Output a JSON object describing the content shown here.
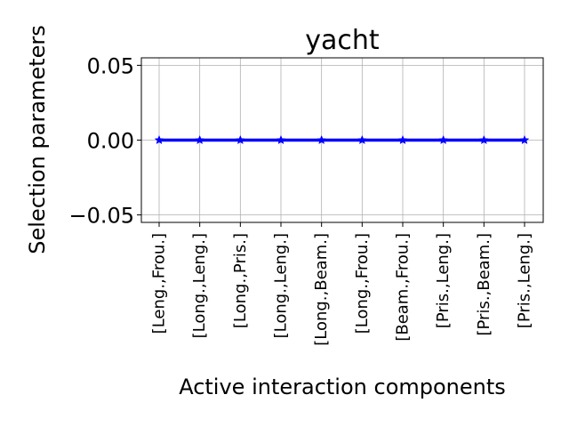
{
  "chart_data": {
    "type": "line",
    "title": "yacht",
    "xlabel": "Active interaction components",
    "ylabel": "Selection parameters",
    "categories": [
      "[Leng.,Frou.]",
      "[Long.,Leng.]",
      "[Long.,Pris.]",
      "[Long.,Leng.]",
      "[Long.,Beam.]",
      "[Long.,Frou.]",
      "[Beam.,Frou.]",
      "[Pris.,Leng.]",
      "[Pris.,Beam.]",
      "[Pris.,Leng.]"
    ],
    "series": [
      {
        "values": [
          0,
          0,
          0,
          0,
          0,
          0,
          0,
          0,
          0,
          0
        ],
        "color": "#0000ff",
        "marker": "star"
      }
    ],
    "ylim": [
      -0.055,
      0.055
    ],
    "yticks": [
      -0.05,
      0.0,
      0.05
    ],
    "ytick_labels": [
      "−0.05",
      "0.00",
      "0.05"
    ],
    "grid": true
  }
}
